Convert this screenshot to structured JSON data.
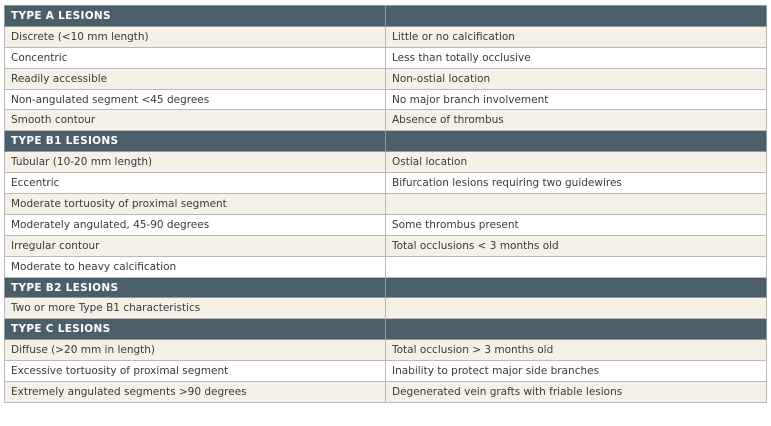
{
  "sections": [
    {
      "title": "TYPE A LESIONS",
      "rows": [
        [
          "Discrete (<10 mm length)",
          "Little or no calcification"
        ],
        [
          "Concentric",
          "Less than totally occlusive"
        ],
        [
          "Readily accessible",
          "Non-ostial location"
        ],
        [
          "Non-angulated segment <45 degrees",
          "No major branch involvement"
        ],
        [
          "Smooth contour",
          "Absence of thrombus"
        ]
      ]
    },
    {
      "title": "TYPE B1 LESIONS",
      "rows": [
        [
          "Tubular (10-20 mm length)",
          "Ostial location"
        ],
        [
          "Eccentric",
          "Bifurcation lesions requiring two guidewires"
        ],
        [
          "Moderate tortuosity of proximal segment",
          null
        ],
        [
          "Moderately angulated, 45-90 degrees",
          "Some thrombus present"
        ],
        [
          "Irregular contour",
          "Total occlusions < 3 months old"
        ],
        [
          "Moderate to heavy calcification",
          null
        ]
      ]
    },
    {
      "title": "TYPE B2 LESIONS",
      "rows": [
        [
          "Two or more Type B1 characteristics",
          null
        ]
      ]
    },
    {
      "title": "TYPE C LESIONS",
      "rows": [
        [
          "Diffuse (>20 mm in length)",
          "Total occlusion > 3 months old"
        ],
        [
          "Excessive tortuosity of proximal segment",
          "Inability to protect major side branches"
        ],
        [
          "Extremely angulated segments >90 degrees",
          "Degenerated vein grafts with friable lesions"
        ]
      ]
    }
  ]
}
